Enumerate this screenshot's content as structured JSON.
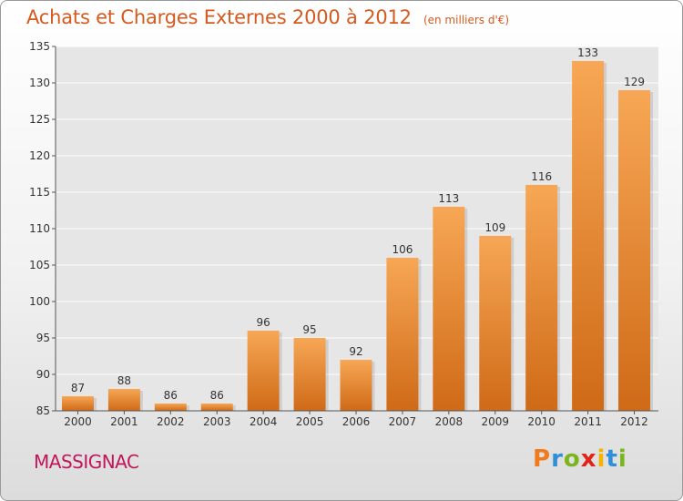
{
  "title": "Achats et Charges Externes 2000 à 2012",
  "unit_note": "(en milliers d'€)",
  "city": "MASSIGNAC",
  "brand": {
    "letters": [
      "P",
      "r",
      "o",
      "x",
      "i",
      "t",
      "i"
    ],
    "colors": [
      "#f07a1c",
      "#2f8fd8",
      "#7ab51d",
      "#e2231a",
      "#f4b400",
      "#2f8fd8",
      "#7ab51d"
    ]
  },
  "colors": {
    "bar_top": "#f7a755",
    "bar_bottom": "#cf6a17",
    "title": "#d45a1f",
    "city": "#c2155a"
  },
  "chart_data": {
    "type": "bar",
    "categories": [
      "2000",
      "2001",
      "2002",
      "2003",
      "2004",
      "2005",
      "2006",
      "2007",
      "2008",
      "2009",
      "2010",
      "2011",
      "2012"
    ],
    "values": [
      87,
      88,
      86,
      86,
      96,
      95,
      92,
      106,
      113,
      109,
      116,
      133,
      129
    ],
    "ylim": [
      85,
      135
    ],
    "yticks": [
      85,
      90,
      95,
      100,
      105,
      110,
      115,
      120,
      125,
      130,
      135
    ],
    "grid": true
  }
}
